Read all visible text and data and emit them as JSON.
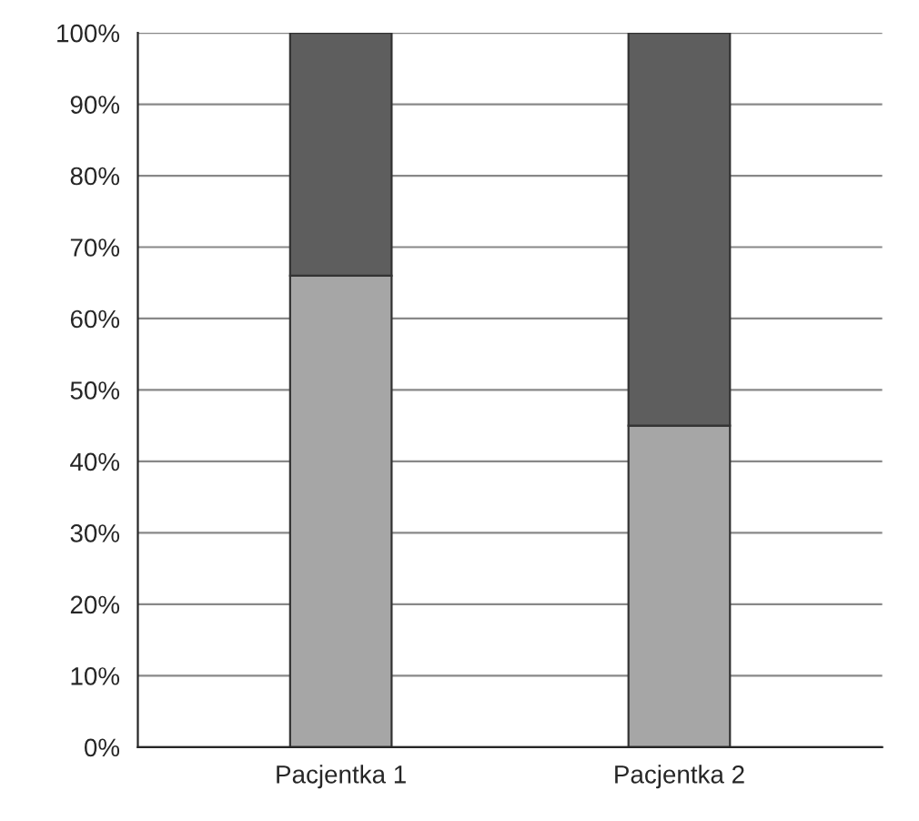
{
  "chart_data": {
    "type": "bar",
    "stacked": true,
    "categories": [
      "Pacjentka 1",
      "Pacjentka 2"
    ],
    "series": [
      {
        "color": "#a6a6a6",
        "values": [
          66,
          45
        ]
      },
      {
        "color": "#5e5e5e",
        "values": [
          34,
          55
        ]
      }
    ],
    "ylim": [
      0,
      100
    ],
    "yticks": [
      {
        "value": 0,
        "label": "0%"
      },
      {
        "value": 10,
        "label": "10%"
      },
      {
        "value": 20,
        "label": "20%"
      },
      {
        "value": 30,
        "label": "30%"
      },
      {
        "value": 40,
        "label": "40%"
      },
      {
        "value": 50,
        "label": "50%"
      },
      {
        "value": 60,
        "label": "60%"
      },
      {
        "value": 70,
        "label": "70%"
      },
      {
        "value": 80,
        "label": "80%"
      },
      {
        "value": 90,
        "label": "90%"
      },
      {
        "value": 100,
        "label": "100%"
      }
    ],
    "grid": "y"
  }
}
